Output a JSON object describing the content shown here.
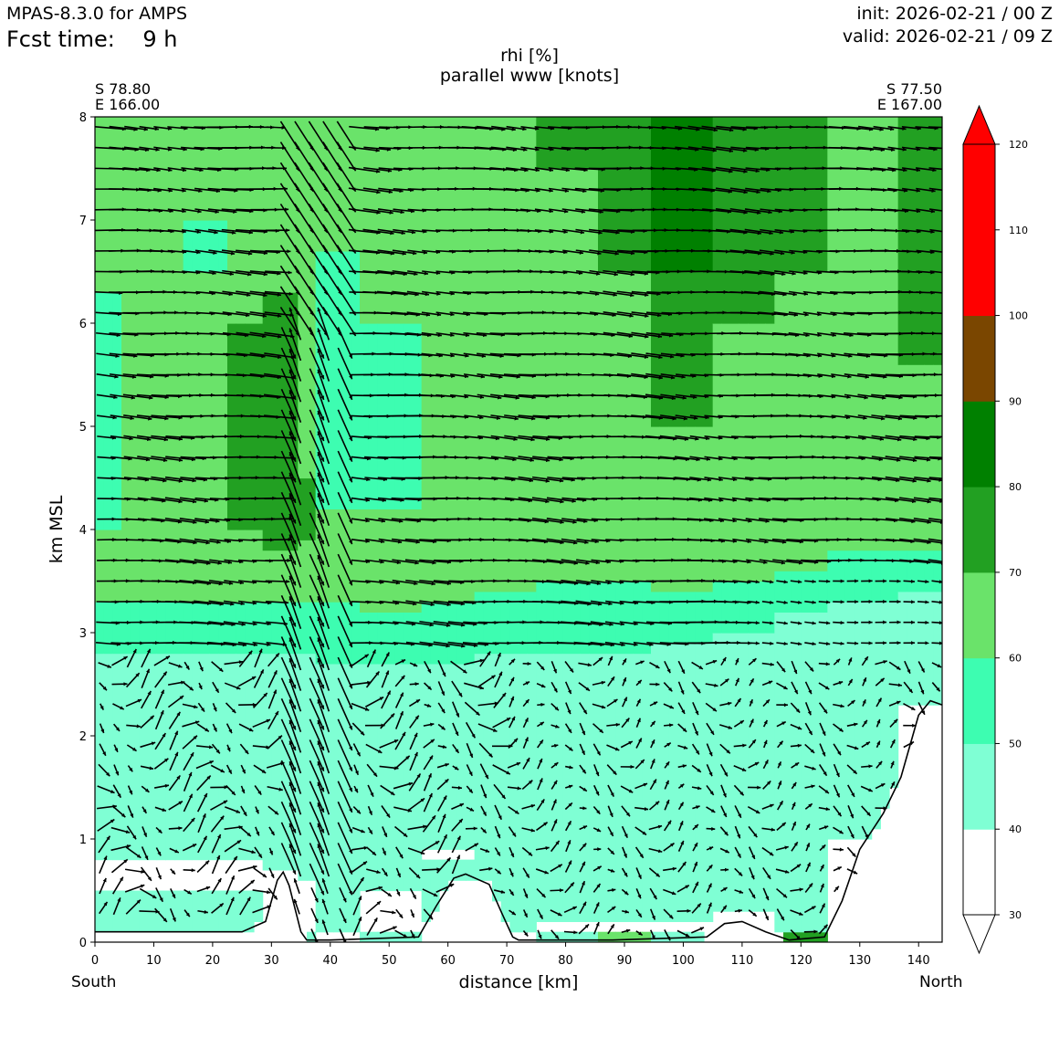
{
  "header": {
    "model": "MPAS-8.3.0 for AMPS",
    "fcst_time": "Fcst time:    9 h",
    "init": "init: 2026-02-21 / 00 Z",
    "valid": "valid: 2026-02-21 / 09 Z"
  },
  "corners": {
    "left_lat": "S 78.80",
    "left_lon": "E 166.00",
    "right_lat": "S 77.50",
    "right_lon": "E 167.00"
  },
  "direction_labels": {
    "left": "South",
    "right": "North"
  },
  "colors": {
    "bins": [
      "#ffffff",
      "#7fffd4",
      "#3dfdb1",
      "#6ae36a",
      "#22a022",
      "#008000",
      "#7a4600",
      "#ff0000"
    ],
    "terrain_line": "#000000",
    "arrows": "#000000"
  },
  "chart_data": {
    "type": "heatmap",
    "title": "rhi [%]",
    "subtitle": "parallel www [knots]",
    "xlabel": "distance [km]",
    "ylabel": "km MSL",
    "xlim": [
      0,
      144
    ],
    "ylim": [
      0,
      8
    ],
    "xticks": [
      "0",
      "10",
      "20",
      "30",
      "40",
      "50",
      "60",
      "70",
      "80",
      "90",
      "100",
      "110",
      "120",
      "130",
      "140"
    ],
    "yticks": [
      "0",
      "1",
      "2",
      "3",
      "4",
      "5",
      "6",
      "7",
      "8"
    ],
    "colorbar": {
      "levels": [
        30,
        40,
        50,
        60,
        70,
        80,
        90,
        100,
        110,
        120
      ],
      "tick_labels": [
        "30",
        "40",
        "50",
        "60",
        "70",
        "80",
        "90",
        "100",
        "110",
        "120"
      ],
      "extend": "both"
    },
    "terrain": [
      [
        0,
        0.1
      ],
      [
        25,
        0.1
      ],
      [
        29,
        0.2
      ],
      [
        31,
        0.6
      ],
      [
        32,
        0.68
      ],
      [
        33,
        0.55
      ],
      [
        35,
        0.1
      ],
      [
        36,
        0.02
      ],
      [
        40,
        0.02
      ],
      [
        55,
        0.05
      ],
      [
        58,
        0.35
      ],
      [
        61,
        0.62
      ],
      [
        63,
        0.66
      ],
      [
        67,
        0.56
      ],
      [
        69,
        0.3
      ],
      [
        71,
        0.05
      ],
      [
        72,
        0.02
      ],
      [
        88,
        0.02
      ],
      [
        104,
        0.05
      ],
      [
        107,
        0.18
      ],
      [
        110,
        0.2
      ],
      [
        114,
        0.1
      ],
      [
        118,
        0.02
      ],
      [
        124,
        0.05
      ],
      [
        127,
        0.4
      ],
      [
        130,
        0.9
      ],
      [
        134,
        1.25
      ],
      [
        137,
        1.6
      ],
      [
        140,
        2.2
      ],
      [
        142,
        2.34
      ],
      [
        144,
        2.3
      ]
    ],
    "rh_profiles": [
      {
        "x": 0,
        "levels": [
          [
            0.1,
            55
          ],
          [
            0.5,
            40
          ],
          [
            0.85,
            30
          ],
          [
            2.8,
            45
          ],
          [
            3.3,
            55
          ],
          [
            4.0,
            60
          ],
          [
            6.3,
            55
          ],
          [
            6.5,
            60
          ],
          [
            8.0,
            60
          ]
        ]
      },
      {
        "x": 10,
        "levels": [
          [
            0.1,
            45
          ],
          [
            0.5,
            40
          ],
          [
            0.8,
            30
          ],
          [
            2.8,
            45
          ],
          [
            3.3,
            55
          ],
          [
            4.0,
            60
          ],
          [
            8.0,
            60
          ]
        ]
      },
      {
        "x": 20,
        "levels": [
          [
            0.1,
            45
          ],
          [
            0.5,
            40
          ],
          [
            0.8,
            30
          ],
          [
            2.8,
            45
          ],
          [
            3.3,
            55
          ],
          [
            4.1,
            60
          ],
          [
            6.5,
            60
          ],
          [
            7.0,
            55
          ],
          [
            7.8,
            60
          ],
          [
            8.0,
            60
          ]
        ]
      },
      {
        "x": 26,
        "levels": [
          [
            0.1,
            50
          ],
          [
            0.5,
            40
          ],
          [
            0.8,
            30
          ],
          [
            2.8,
            45
          ],
          [
            3.3,
            55
          ],
          [
            4.0,
            60
          ],
          [
            4.6,
            70
          ],
          [
            6.0,
            70
          ],
          [
            8.0,
            60
          ]
        ]
      },
      {
        "x": 32,
        "levels": [
          [
            0.7,
            30
          ],
          [
            2.8,
            45
          ],
          [
            3.3,
            55
          ],
          [
            3.8,
            60
          ],
          [
            4.2,
            70
          ],
          [
            6.3,
            70
          ],
          [
            8.0,
            60
          ]
        ]
      },
      {
        "x": 36,
        "levels": [
          [
            0.1,
            45
          ],
          [
            0.6,
            30
          ],
          [
            2.8,
            45
          ],
          [
            3.3,
            55
          ],
          [
            3.9,
            60
          ],
          [
            4.5,
            70
          ],
          [
            5.8,
            60
          ],
          [
            8.0,
            60
          ]
        ]
      },
      {
        "x": 40,
        "levels": [
          [
            0.1,
            30
          ],
          [
            2.7,
            45
          ],
          [
            3.3,
            55
          ],
          [
            4.2,
            60
          ],
          [
            6.7,
            55
          ],
          [
            8.0,
            60
          ]
        ]
      },
      {
        "x": 50,
        "levels": [
          [
            0.1,
            40
          ],
          [
            0.5,
            30
          ],
          [
            2.7,
            45
          ],
          [
            3.2,
            55
          ],
          [
            4.2,
            60
          ],
          [
            5.0,
            55
          ],
          [
            6.0,
            55
          ],
          [
            6.3,
            60
          ],
          [
            8.0,
            60
          ]
        ]
      },
      {
        "x": 60,
        "levels": [
          [
            0.1,
            30
          ],
          [
            0.8,
            40
          ],
          [
            0.95,
            30
          ],
          [
            2.7,
            45
          ],
          [
            3.3,
            55
          ],
          [
            4.2,
            60
          ],
          [
            8.0,
            60
          ]
        ]
      },
      {
        "x": 70,
        "levels": [
          [
            0.1,
            30
          ],
          [
            2.8,
            45
          ],
          [
            3.4,
            55
          ],
          [
            4.0,
            60
          ],
          [
            8.0,
            60
          ]
        ]
      },
      {
        "x": 80,
        "levels": [
          [
            0.1,
            40
          ],
          [
            0.2,
            30
          ],
          [
            2.8,
            45
          ],
          [
            3.5,
            55
          ],
          [
            4.4,
            60
          ],
          [
            7.5,
            60
          ],
          [
            8.0,
            70
          ]
        ]
      },
      {
        "x": 90,
        "levels": [
          [
            0.1,
            60
          ],
          [
            0.2,
            30
          ],
          [
            2.8,
            45
          ],
          [
            3.5,
            55
          ],
          [
            4.5,
            60
          ],
          [
            6.5,
            60
          ],
          [
            7.0,
            70
          ],
          [
            8.0,
            70
          ]
        ]
      },
      {
        "x": 100,
        "levels": [
          [
            0.1,
            40
          ],
          [
            0.2,
            30
          ],
          [
            2.9,
            45
          ],
          [
            3.4,
            55
          ],
          [
            5.0,
            60
          ],
          [
            6.5,
            70
          ],
          [
            7.2,
            80
          ],
          [
            8.0,
            80
          ]
        ]
      },
      {
        "x": 110,
        "levels": [
          [
            0.1,
            40
          ],
          [
            0.25,
            30
          ],
          [
            3.0,
            45
          ],
          [
            3.5,
            55
          ],
          [
            4.5,
            60
          ],
          [
            6.0,
            60
          ],
          [
            6.5,
            70
          ],
          [
            8.0,
            70
          ]
        ]
      },
      {
        "x": 120,
        "levels": [
          [
            0.1,
            70
          ],
          [
            0.3,
            40
          ],
          [
            0.35,
            30
          ],
          [
            3.2,
            45
          ],
          [
            3.6,
            55
          ],
          [
            4.5,
            60
          ],
          [
            6.5,
            60
          ],
          [
            7.3,
            70
          ],
          [
            8.0,
            70
          ]
        ]
      },
      {
        "x": 130,
        "levels": [
          [
            1.0,
            30
          ],
          [
            3.3,
            45
          ],
          [
            3.8,
            55
          ],
          [
            5.5,
            60
          ],
          [
            7.0,
            60
          ],
          [
            7.5,
            60
          ],
          [
            8.0,
            60
          ]
        ]
      },
      {
        "x": 144,
        "levels": [
          [
            2.3,
            30
          ],
          [
            3.4,
            45
          ],
          [
            3.8,
            55
          ],
          [
            5.6,
            60
          ],
          [
            8.0,
            70
          ]
        ]
      }
    ],
    "wind_description": "parallel wind vectors: strong near-horizontal flow toward north above ~3 km; steep descending/ascending flow around x=32-42 km; weak mixed vectors below 3 km"
  }
}
